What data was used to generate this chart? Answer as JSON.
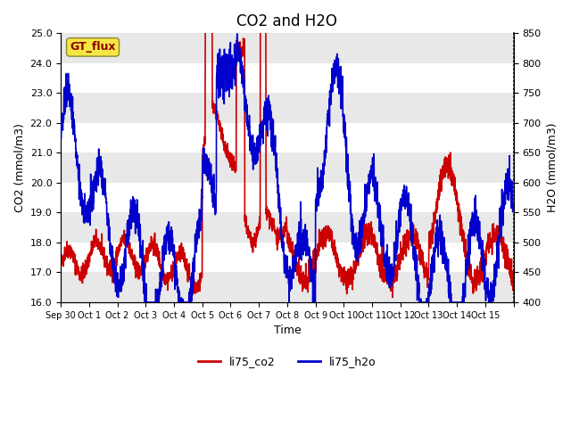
{
  "title": "CO2 and H2O",
  "xlabel": "Time",
  "ylabel_left": "CO2 (mmol/m3)",
  "ylabel_right": "H2O (mmol/m3)",
  "ylim_left": [
    16.0,
    25.0
  ],
  "ylim_right": [
    400,
    850
  ],
  "yticks_left": [
    16.0,
    17.0,
    18.0,
    19.0,
    20.0,
    21.0,
    22.0,
    23.0,
    24.0,
    25.0
  ],
  "yticks_right": [
    400,
    450,
    500,
    550,
    600,
    650,
    700,
    750,
    800,
    850
  ],
  "xtick_positions": [
    0,
    1,
    2,
    3,
    4,
    5,
    6,
    7,
    8,
    9,
    10,
    11,
    12,
    13,
    14,
    15,
    16
  ],
  "xtick_labels": [
    "Sep 30",
    "Oct 1",
    "Oct 2",
    "Oct 3",
    "Oct 4",
    "Oct 5",
    "Oct 6",
    "Oct 7",
    "Oct 8",
    "Oct 9",
    "Oct 10",
    "Oct 11",
    "Oct 12",
    "Oct 13",
    "Oct 14",
    "Oct 15",
    ""
  ],
  "legend_labels": [
    "li75_co2",
    "li75_h2o"
  ],
  "gt_flux_label": "GT_flux",
  "bg_color": "white",
  "band_colors": [
    "#e8e8e8",
    "white"
  ],
  "line_color_co2": "#cc0000",
  "line_color_h2o": "#0000cc",
  "line_width": 1.2,
  "title_fontsize": 12,
  "label_fontsize": 9,
  "tick_fontsize": 8
}
